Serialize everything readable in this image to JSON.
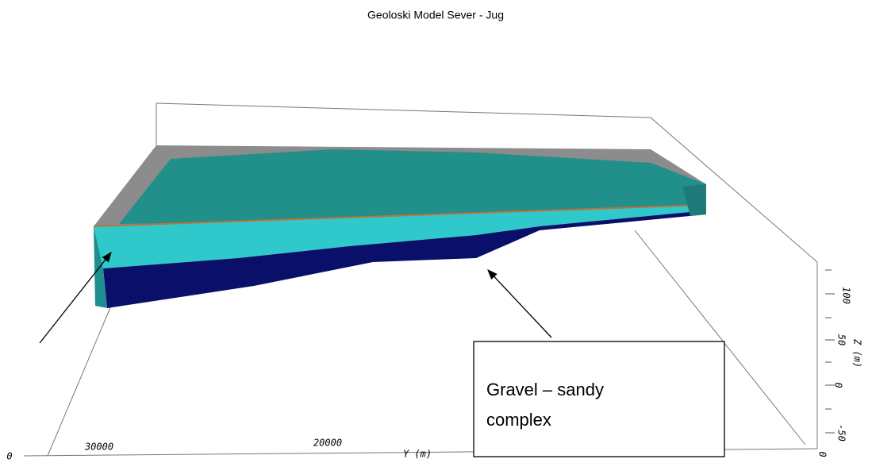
{
  "title": "Geoloski Model Sever - Jug",
  "y_axis": {
    "title": "Y (m)",
    "labels": [
      "30000",
      "20000"
    ],
    "corner_label": "0"
  },
  "z_axis": {
    "title": "Z (m)",
    "labels": [
      "100",
      "50",
      "0",
      "-50"
    ],
    "corner_label": "0"
  },
  "annotation": {
    "lines": [
      "Gravel – sandy",
      "complex"
    ]
  }
}
